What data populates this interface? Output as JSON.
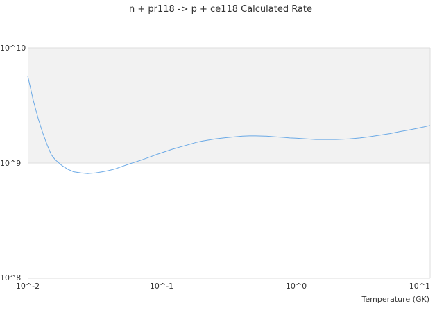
{
  "chart_data": {
    "type": "line",
    "title": "n + pr118 -> p + ce118 Calculated Rate",
    "xlabel": "Temperature (GK)",
    "ylabel": "",
    "xscale": "log",
    "yscale": "log",
    "xlim": [
      0.01,
      10
    ],
    "ylim": [
      100000000,
      10000000000
    ],
    "x_ticks": [
      "10^-2",
      "10^-1",
      "10^0",
      "10^1"
    ],
    "y_ticks": [
      "10^8",
      "10^9",
      "10^10"
    ],
    "grid": "horizontal",
    "legend": "none",
    "colors": {
      "line": "#6aa9e6",
      "band": "#f2f2f2",
      "grid": "#dddddd",
      "text": "#333333"
    },
    "series": [
      {
        "x": [
          0.01,
          0.011,
          0.012,
          0.013,
          0.014,
          0.015,
          0.016,
          0.018,
          0.02,
          0.022,
          0.025,
          0.028,
          0.032,
          0.036,
          0.04,
          0.045,
          0.05,
          0.06,
          0.07,
          0.08,
          0.09,
          0.1,
          0.12,
          0.14,
          0.16,
          0.18,
          0.2,
          0.25,
          0.3,
          0.35,
          0.4,
          0.45,
          0.5,
          0.6,
          0.7,
          0.8,
          0.9,
          1.0,
          1.2,
          1.4,
          1.6,
          1.8,
          2.0,
          2.5,
          3.0,
          3.5,
          4.0,
          5.0,
          6.0,
          7.0,
          8.0,
          9.0,
          10.0
        ],
        "y": [
          5700000000,
          3500000000,
          2400000000,
          1800000000,
          1420000000,
          1180000000,
          1070000000,
          950000000,
          880000000,
          840000000,
          820000000,
          810000000,
          820000000,
          840000000,
          860000000,
          890000000,
          930000000,
          1000000000,
          1060000000,
          1120000000,
          1180000000,
          1230000000,
          1320000000,
          1390000000,
          1450000000,
          1510000000,
          1550000000,
          1620000000,
          1660000000,
          1690000000,
          1710000000,
          1720000000,
          1720000000,
          1710000000,
          1690000000,
          1670000000,
          1650000000,
          1640000000,
          1620000000,
          1600000000,
          1600000000,
          1600000000,
          1600000000,
          1620000000,
          1650000000,
          1690000000,
          1730000000,
          1800000000,
          1880000000,
          1940000000,
          2000000000,
          2060000000,
          2120000000
        ]
      }
    ]
  }
}
